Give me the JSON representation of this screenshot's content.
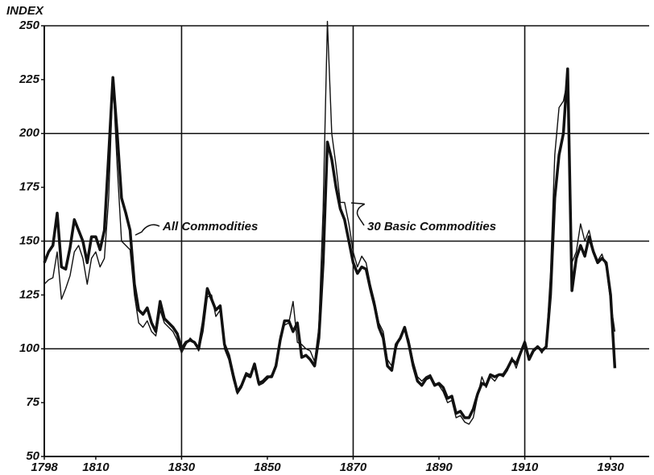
{
  "chart_data": {
    "type": "line",
    "ylabel": "INDEX",
    "annotations": [
      "All Commodities",
      "30 Basic Commodities"
    ],
    "x": [
      1798,
      1799,
      1800,
      1801,
      1802,
      1803,
      1804,
      1805,
      1806,
      1807,
      1808,
      1809,
      1810,
      1811,
      1812,
      1813,
      1814,
      1815,
      1816,
      1817,
      1818,
      1819,
      1820,
      1821,
      1822,
      1823,
      1824,
      1825,
      1826,
      1827,
      1828,
      1829,
      1830,
      1831,
      1832,
      1833,
      1834,
      1835,
      1836,
      1837,
      1838,
      1839,
      1840,
      1841,
      1842,
      1843,
      1844,
      1845,
      1846,
      1847,
      1848,
      1849,
      1850,
      1851,
      1852,
      1853,
      1854,
      1855,
      1856,
      1857,
      1858,
      1859,
      1860,
      1861,
      1862,
      1863,
      1864,
      1865,
      1866,
      1867,
      1868,
      1869,
      1870,
      1871,
      1872,
      1873,
      1874,
      1875,
      1876,
      1877,
      1878,
      1879,
      1880,
      1881,
      1882,
      1883,
      1884,
      1885,
      1886,
      1887,
      1888,
      1889,
      1890,
      1891,
      1892,
      1893,
      1894,
      1895,
      1896,
      1897,
      1898,
      1899,
      1900,
      1901,
      1902,
      1903,
      1904,
      1905,
      1906,
      1907,
      1908,
      1909,
      1910,
      1911,
      1912,
      1913,
      1914,
      1915,
      1916,
      1917,
      1918,
      1919,
      1920,
      1921,
      1922,
      1923,
      1924,
      1925,
      1926,
      1927,
      1928,
      1929,
      1930,
      1931
    ],
    "series": [
      {
        "name": "All Commodities",
        "color": "#111111",
        "width": 3.5,
        "values": [
          140,
          145,
          148,
          163,
          138,
          137,
          147,
          160,
          155,
          150,
          140,
          152,
          152,
          146,
          155,
          190,
          226,
          200,
          170,
          163,
          155,
          130,
          118,
          116,
          119,
          112,
          108,
          122,
          114,
          112,
          110,
          107,
          100,
          103,
          104,
          103,
          100,
          112,
          128,
          123,
          118,
          120,
          102,
          97,
          88,
          80,
          83,
          88,
          87,
          93,
          84,
          85,
          87,
          87,
          92,
          104,
          113,
          113,
          108,
          112,
          96,
          97,
          95,
          92,
          105,
          140,
          196,
          188,
          175,
          165,
          160,
          150,
          140,
          135,
          138,
          137,
          128,
          120,
          110,
          105,
          92,
          90,
          102,
          105,
          110,
          102,
          92,
          85,
          83,
          86,
          87,
          83,
          84,
          82,
          77,
          78,
          70,
          71,
          68,
          68,
          72,
          79,
          84,
          83,
          88,
          87,
          88,
          88,
          91,
          95,
          93,
          98,
          103,
          95,
          99,
          101,
          99,
          101,
          125,
          170,
          190,
          200,
          230,
          127,
          142,
          148,
          143,
          152,
          145,
          140,
          142,
          140,
          125,
          91
        ]
      },
      {
        "name": "30 Basic Commodities",
        "color": "#111111",
        "width": 1.4,
        "values": [
          130,
          132,
          133,
          145,
          123,
          128,
          134,
          145,
          148,
          142,
          130,
          142,
          145,
          138,
          142,
          170,
          225,
          185,
          150,
          148,
          146,
          125,
          112,
          110,
          113,
          108,
          106,
          118,
          112,
          110,
          108,
          104,
          98,
          102,
          105,
          103,
          99,
          108,
          124,
          125,
          115,
          118,
          100,
          95,
          86,
          79,
          82,
          89,
          88,
          92,
          83,
          84,
          86,
          88,
          93,
          106,
          111,
          112,
          122,
          103,
          102,
          100,
          99,
          94,
          110,
          165,
          252,
          200,
          185,
          168,
          168,
          158,
          145,
          138,
          143,
          140,
          130,
          122,
          112,
          108,
          95,
          92,
          100,
          106,
          110,
          104,
          94,
          87,
          85,
          87,
          88,
          84,
          83,
          80,
          75,
          76,
          68,
          69,
          66,
          65,
          68,
          78,
          87,
          82,
          87,
          85,
          88,
          87,
          90,
          96,
          91,
          97,
          104,
          96,
          100,
          101,
          98,
          102,
          135,
          190,
          212,
          215,
          225,
          140,
          145,
          158,
          150,
          155,
          146,
          141,
          144,
          138,
          122,
          108
        ]
      }
    ],
    "xlim": [
      1798,
      1939
    ],
    "xticks": [
      1798,
      1810,
      1830,
      1850,
      1870,
      1890,
      1910,
      1930
    ],
    "xgrid": [
      1830,
      1870,
      1910
    ],
    "ylim": [
      50,
      250
    ],
    "yticks": [
      50,
      75,
      100,
      125,
      150,
      175,
      200,
      225,
      250
    ],
    "ygrid": [
      100,
      150,
      200
    ],
    "grid": true
  }
}
